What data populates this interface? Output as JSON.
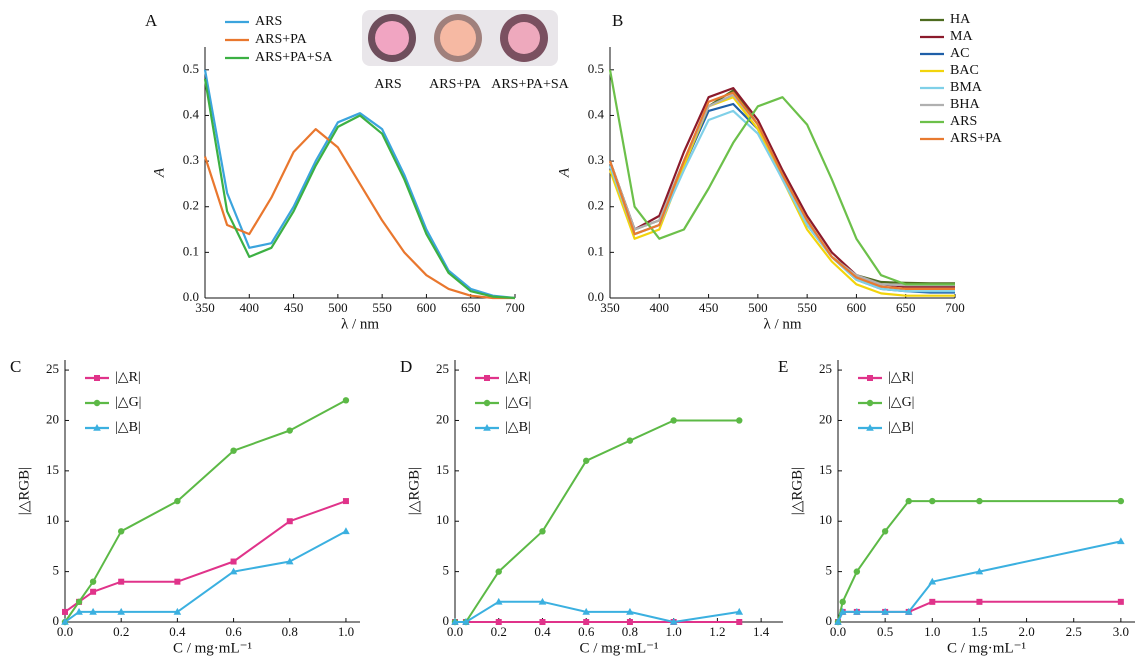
{
  "chart_data": [
    {
      "type": "line",
      "panel_label": "A",
      "x_label": "λ / nm",
      "y_label": "A",
      "inset_labels": [
        "ARS",
        "ARS+PA",
        "ARS+PA+SA"
      ],
      "x": [
        350,
        375,
        400,
        425,
        450,
        475,
        500,
        525,
        550,
        575,
        600,
        625,
        650,
        675,
        700
      ],
      "series": [
        {
          "name": "ARS",
          "color": "#3ba4dd",
          "values": [
            0.5,
            0.23,
            0.11,
            0.12,
            0.2,
            0.3,
            0.385,
            0.405,
            0.37,
            0.27,
            0.15,
            0.06,
            0.02,
            0.005,
            0
          ]
        },
        {
          "name": "ARS+PA",
          "color": "#e9772e",
          "values": [
            0.31,
            0.16,
            0.14,
            0.22,
            0.32,
            0.37,
            0.33,
            0.25,
            0.17,
            0.1,
            0.05,
            0.02,
            0.005,
            0,
            0
          ]
        },
        {
          "name": "ARS+PA+SA",
          "color": "#3cb043",
          "values": [
            0.48,
            0.19,
            0.09,
            0.11,
            0.19,
            0.29,
            0.375,
            0.4,
            0.36,
            0.26,
            0.14,
            0.055,
            0.015,
            0.003,
            0
          ]
        }
      ],
      "xlim": [
        350,
        700
      ],
      "ylim": [
        0,
        0.55
      ],
      "xticks": [
        350,
        400,
        450,
        500,
        550,
        600,
        650,
        700
      ],
      "yticks": [
        {
          "value": 0,
          "label": "0.0"
        },
        0.1,
        0.2,
        0.3,
        0.4,
        0.5
      ],
      "legend": "upper-left",
      "markers": false
    },
    {
      "type": "line",
      "panel_label": "B",
      "x_label": "λ / nm",
      "y_label": "A",
      "x": [
        350,
        375,
        400,
        425,
        450,
        475,
        500,
        525,
        550,
        575,
        600,
        625,
        650,
        675,
        700
      ],
      "series": [
        {
          "name": "HA",
          "color": "#4d6b1f",
          "values": [
            0.3,
            0.15,
            0.17,
            0.3,
            0.42,
            0.455,
            0.38,
            0.27,
            0.17,
            0.09,
            0.05,
            0.035,
            0.033,
            0.032,
            0.032
          ]
        },
        {
          "name": "MA",
          "color": "#8b1a2b",
          "values": [
            0.3,
            0.15,
            0.18,
            0.32,
            0.44,
            0.46,
            0.39,
            0.28,
            0.18,
            0.1,
            0.05,
            0.03,
            0.025,
            0.025,
            0.025
          ]
        },
        {
          "name": "AC",
          "color": "#1f5fa8",
          "values": [
            0.29,
            0.14,
            0.16,
            0.29,
            0.41,
            0.425,
            0.37,
            0.26,
            0.16,
            0.09,
            0.04,
            0.02,
            0.015,
            0.012,
            0.012
          ]
        },
        {
          "name": "BAC",
          "color": "#f2d40c",
          "values": [
            0.28,
            0.13,
            0.15,
            0.29,
            0.42,
            0.44,
            0.37,
            0.26,
            0.15,
            0.08,
            0.03,
            0.01,
            0.005,
            0.005,
            0.005
          ]
        },
        {
          "name": "BMA",
          "color": "#7fd0e8",
          "values": [
            0.29,
            0.14,
            0.16,
            0.28,
            0.39,
            0.41,
            0.36,
            0.26,
            0.16,
            0.09,
            0.04,
            0.02,
            0.015,
            0.015,
            0.015
          ]
        },
        {
          "name": "BHA",
          "color": "#b0b0b0",
          "values": [
            0.3,
            0.15,
            0.17,
            0.3,
            0.42,
            0.445,
            0.38,
            0.27,
            0.17,
            0.09,
            0.05,
            0.03,
            0.028,
            0.028,
            0.028
          ]
        },
        {
          "name": "ARS",
          "color": "#6cc04a",
          "values": [
            0.5,
            0.2,
            0.13,
            0.15,
            0.24,
            0.34,
            0.42,
            0.44,
            0.38,
            0.26,
            0.13,
            0.05,
            0.03,
            0.03,
            0.03
          ]
        },
        {
          "name": "ARS+PA",
          "color": "#e87a30",
          "values": [
            0.3,
            0.14,
            0.16,
            0.3,
            0.43,
            0.45,
            0.38,
            0.27,
            0.17,
            0.09,
            0.045,
            0.025,
            0.02,
            0.02,
            0.02
          ]
        }
      ],
      "xlim": [
        350,
        700
      ],
      "ylim": [
        0,
        0.55
      ],
      "xticks": [
        350,
        400,
        450,
        500,
        550,
        600,
        650,
        700
      ],
      "yticks": [
        {
          "value": 0,
          "label": "0.0"
        },
        0.1,
        0.2,
        0.3,
        0.4,
        0.5
      ],
      "legend": "upper-right",
      "markers": false
    },
    {
      "type": "line",
      "panel_label": "C",
      "x_label": "C / mg·mL⁻¹",
      "y_label": "|△RGB|",
      "x": [
        0,
        0.05,
        0.1,
        0.2,
        0.4,
        0.6,
        0.8,
        1.0
      ],
      "series": [
        {
          "name": "|△R|",
          "color": "#e0338a",
          "marker": "square",
          "values": [
            1,
            2,
            3,
            4,
            4,
            6,
            10,
            12
          ]
        },
        {
          "name": "|△G|",
          "color": "#5cb946",
          "marker": "circle",
          "values": [
            0,
            2,
            4,
            9,
            12,
            17,
            19,
            22
          ]
        },
        {
          "name": "|△B|",
          "color": "#3bb0e0",
          "marker": "triangle",
          "values": [
            0,
            1,
            1,
            1,
            1,
            5,
            6,
            9
          ]
        }
      ],
      "xlim": [
        0,
        1.05
      ],
      "ylim": [
        0,
        26
      ],
      "xticks": [
        {
          "value": 0,
          "label": "0.0"
        },
        0.2,
        0.4,
        0.6,
        0.8,
        {
          "value": 1,
          "label": "1.0"
        }
      ],
      "yticks": [
        0,
        5,
        10,
        15,
        20,
        25
      ],
      "legend": "upper-left",
      "markers": true
    },
    {
      "type": "line",
      "panel_label": "D",
      "x_label": "C / mg·mL⁻¹",
      "y_label": "|△RGB|",
      "x": [
        0,
        0.05,
        0.2,
        0.4,
        0.6,
        0.8,
        1.0,
        1.3
      ],
      "series": [
        {
          "name": "|△R|",
          "color": "#e0338a",
          "marker": "square",
          "values": [
            0,
            0,
            0,
            0,
            0,
            0,
            0,
            0
          ]
        },
        {
          "name": "|△G|",
          "color": "#5cb946",
          "marker": "circle",
          "values": [
            0,
            0,
            5,
            9,
            16,
            18,
            20,
            20
          ]
        },
        {
          "name": "|△B|",
          "color": "#3bb0e0",
          "marker": "triangle",
          "values": [
            0,
            0,
            2,
            2,
            1,
            1,
            0,
            1
          ]
        }
      ],
      "xlim": [
        0,
        1.5
      ],
      "ylim": [
        0,
        26
      ],
      "xticks": [
        {
          "value": 0,
          "label": "0.0"
        },
        0.2,
        0.4,
        0.6,
        0.8,
        {
          "value": 1,
          "label": "1.0"
        },
        1.2,
        1.4
      ],
      "yticks": [
        0,
        5,
        10,
        15,
        20,
        25
      ],
      "legend": "upper-left",
      "markers": true
    },
    {
      "type": "line",
      "panel_label": "E",
      "x_label": "C / mg·mL⁻¹",
      "y_label": "|△RGB|",
      "x": [
        0,
        0.05,
        0.2,
        0.5,
        0.75,
        1.0,
        1.5,
        3.0
      ],
      "series": [
        {
          "name": "|△R|",
          "color": "#e0338a",
          "marker": "square",
          "values": [
            0,
            1,
            1,
            1,
            1,
            2,
            2,
            2
          ]
        },
        {
          "name": "|△G|",
          "color": "#5cb946",
          "marker": "circle",
          "values": [
            0,
            2,
            5,
            9,
            12,
            12,
            12,
            12
          ]
        },
        {
          "name": "|△B|",
          "color": "#3bb0e0",
          "marker": "triangle",
          "values": [
            0,
            1,
            1,
            1,
            1,
            4,
            5,
            8
          ]
        }
      ],
      "xlim": [
        0,
        3.15
      ],
      "ylim": [
        0,
        26
      ],
      "xticks": [
        {
          "value": 0,
          "label": "0.0"
        },
        0.5,
        {
          "value": 1,
          "label": "1.0"
        },
        1.5,
        {
          "value": 2,
          "label": "2.0"
        },
        2.5,
        {
          "value": 3,
          "label": "3.0"
        }
      ],
      "yticks": [
        0,
        5,
        10,
        15,
        20,
        25
      ],
      "legend": "upper-left",
      "markers": true
    }
  ]
}
